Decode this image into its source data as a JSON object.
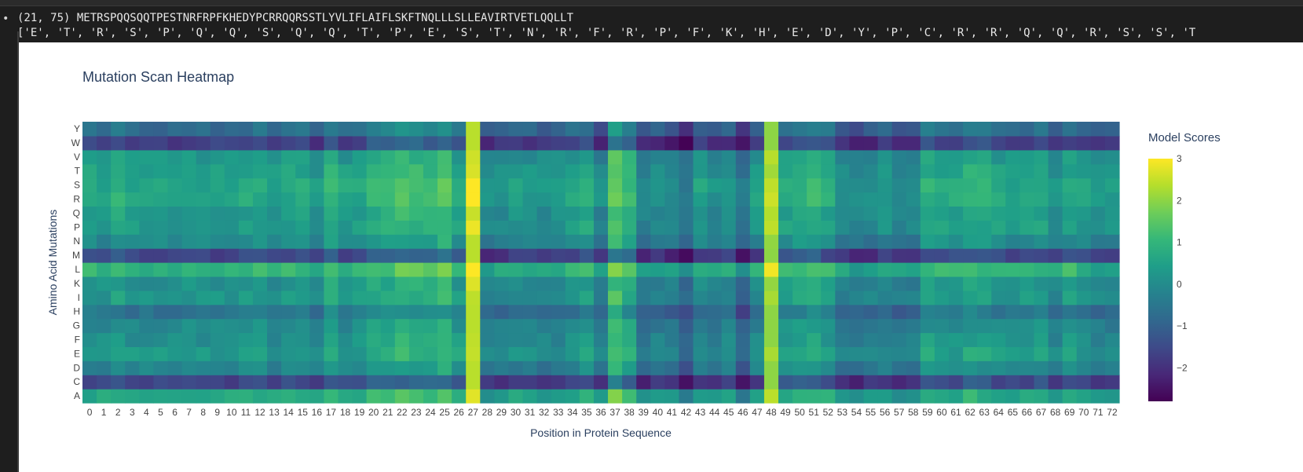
{
  "output": {
    "line1": "(21, 75) METRSPQQSQQTPESTNRFRPFKHEDYPCRRQQRSSTLYVLIFLAIFLSKFTNQLLLSLLEAVIRTVETLQQLLT",
    "line2": "['E', 'T', 'R', 'S', 'P', 'Q', 'Q', 'S', 'Q', 'Q', 'T', 'P', 'E', 'S', 'T', 'N', 'R', 'F', 'R', 'P', 'F', 'K', 'H', 'E', 'D', 'Y', 'P', 'C', 'R', 'R', 'Q', 'Q', 'R', 'S', 'S', 'T"
  },
  "chart_data": {
    "type": "heatmap",
    "title": "Mutation Scan Heatmap",
    "xlabel": "Position in Protein Sequence",
    "ylabel": "Amino Acid Mutations",
    "colorbar_title": "Model Scores",
    "colorscale": "viridis",
    "zmin": -2.8,
    "zmax": 3.0,
    "colorbar_ticks": [
      3,
      2,
      1,
      0,
      -1,
      -2
    ],
    "colorbar_tick_labels": [
      "3",
      "2",
      "1",
      "0",
      "−1",
      "−2"
    ],
    "x": [
      0,
      1,
      2,
      3,
      4,
      5,
      6,
      7,
      8,
      9,
      10,
      11,
      12,
      13,
      14,
      15,
      16,
      17,
      18,
      19,
      20,
      21,
      22,
      23,
      24,
      25,
      26,
      27,
      28,
      29,
      30,
      31,
      32,
      33,
      34,
      35,
      36,
      37,
      38,
      39,
      40,
      41,
      42,
      43,
      44,
      45,
      46,
      47,
      48,
      49,
      50,
      51,
      52,
      53,
      54,
      55,
      56,
      57,
      58,
      59,
      60,
      61,
      62,
      63,
      64,
      65,
      66,
      67,
      68,
      69,
      70,
      71,
      72
    ],
    "y": [
      "A",
      "C",
      "D",
      "E",
      "F",
      "G",
      "H",
      "I",
      "K",
      "L",
      "M",
      "N",
      "P",
      "Q",
      "R",
      "S",
      "T",
      "V",
      "W",
      "Y"
    ],
    "row_effect": {
      "A": 0.6,
      "C": -1.6,
      "D": -0.2,
      "E": 0.3,
      "F": 0.1,
      "G": -0.1,
      "H": -0.6,
      "I": 0.2,
      "K": 0.1,
      "L": 0.9,
      "M": -1.6,
      "N": -0.1,
      "P": 0.3,
      "Q": 0.3,
      "R": 0.6,
      "S": 0.6,
      "T": 0.4,
      "V": 0.2,
      "W": -1.7,
      "Y": -0.8
    },
    "column_effect": [
      0.1,
      0.0,
      0.3,
      0.0,
      0.0,
      0.0,
      -0.1,
      0.1,
      0.0,
      0.0,
      0.0,
      0.1,
      0.2,
      -0.1,
      0.1,
      0.1,
      -0.2,
      0.5,
      0.0,
      0.1,
      0.5,
      0.5,
      0.8,
      0.7,
      0.6,
      0.9,
      0.2,
      2.4,
      -0.4,
      -0.3,
      -0.1,
      -0.2,
      -0.3,
      -0.2,
      0.0,
      0.3,
      -0.5,
      1.1,
      0.6,
      -0.6,
      -0.3,
      -0.5,
      -1.0,
      -0.1,
      -0.4,
      -0.2,
      -1.0,
      -0.1,
      2.0,
      0.2,
      0.4,
      0.5,
      0.2,
      -0.4,
      -0.5,
      -0.4,
      -0.2,
      -0.5,
      -0.4,
      0.3,
      0.2,
      0.1,
      0.4,
      0.3,
      0.1,
      0.0,
      0.1,
      0.2,
      -0.3,
      0.2,
      0.0,
      -0.3,
      -0.2
    ]
  }
}
